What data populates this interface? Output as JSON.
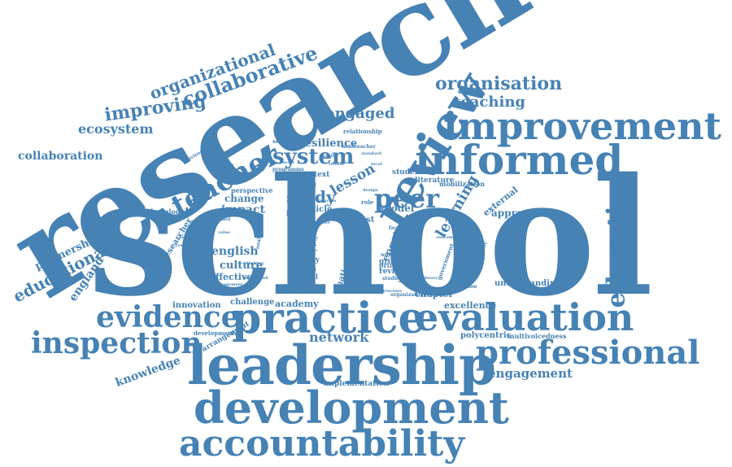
{
  "colors": {
    "primary": "#4682b4",
    "background": "#ffffff"
  },
  "words": {
    "school": "school",
    "research": "research",
    "review": "review",
    "leadership": "leadership",
    "development": "development",
    "accountability": "accountability",
    "practice": "practice",
    "evaluation": "evaluation",
    "professional": "professional",
    "improvement": "improvement",
    "informed": "informed",
    "evidence": "evidence",
    "inspection": "inspection",
    "education": "education",
    "teacher": "teacher",
    "system": "system",
    "peer": "peer",
    "collaborative": "collaborative",
    "organizational": "organizational",
    "improving": "improving",
    "organisation": "organisation",
    "teaching": "teaching",
    "engaged": "engaged",
    "ecosystem": "ecosystem",
    "collaboration": "collaboration",
    "educational": "educational",
    "partnership": "partnership",
    "england": "england",
    "knowledge": "knowledge",
    "network": "network",
    "engagement": "engagement",
    "learning": "learning",
    "study": "study",
    "lesson": "lesson",
    "resilience": "resilience",
    "impact": "impact",
    "change": "change",
    "english": "english",
    "culture": "culture",
    "effective": "effective",
    "self": "self",
    "leader": "leader",
    "policy": "policy",
    "london": "london",
    "based": "based",
    "article": "article",
    "model": "model",
    "trust": "trust",
    "chapter": "chapter",
    "excellence": "excellence",
    "academy": "academy",
    "challenge": "challenge",
    "innovation": "innovation",
    "polycentric": "polycentric",
    "multivoicedness": "multivoicedness",
    "approach": "approach",
    "external": "external",
    "understanding": "understanding",
    "implementation": "implementation",
    "arrangement": "arrangement",
    "developmental": "developmental",
    "literature": "literature",
    "student": "student",
    "context": "context",
    "perspective": "perspective",
    "researcher": "researcher",
    "methodology": "methodology",
    "mobilization": "mobilization",
    "growth": "growth",
    "revision": "revision",
    "primary": "primary",
    "national": "national",
    "case": "case",
    "enquiry": "enquiry",
    "internal": "internal",
    "project": "project",
    "implication": "implication",
    "relationship": "relationship",
    "secondary": "secondary",
    "building": "building",
    "role": "role",
    "environment": "environment",
    "characteristic": "characteristic",
    "government": "government",
    "organization": "organization",
    "paper": "paper",
    "headteacher": "headteacher",
    "programme": "programme",
    "pedagogical": "pedagogical",
    "level": "level",
    "work": "work",
    "structure": "structure",
    "interview": "interview",
    "basada": "basada",
    "studies": "studies",
    "finding": "finding",
    "thinking": "thinking",
    "management": "management",
    "quality": "quality",
    "standard": "standard",
    "factor": "factor",
    "process": "process",
    "data": "data",
    "focus": "focus",
    "design": "design",
    "social": "social",
    "method": "method",
    "analysis": "analysis",
    "capacity": "capacity",
    "community": "community",
    "framework": "framework",
    "support": "support",
    "outcome": "outcome",
    "issue": "issue",
    "theory": "theory",
    "group": "group",
    "local": "local",
    "reform": "reform",
    "value": "value"
  }
}
